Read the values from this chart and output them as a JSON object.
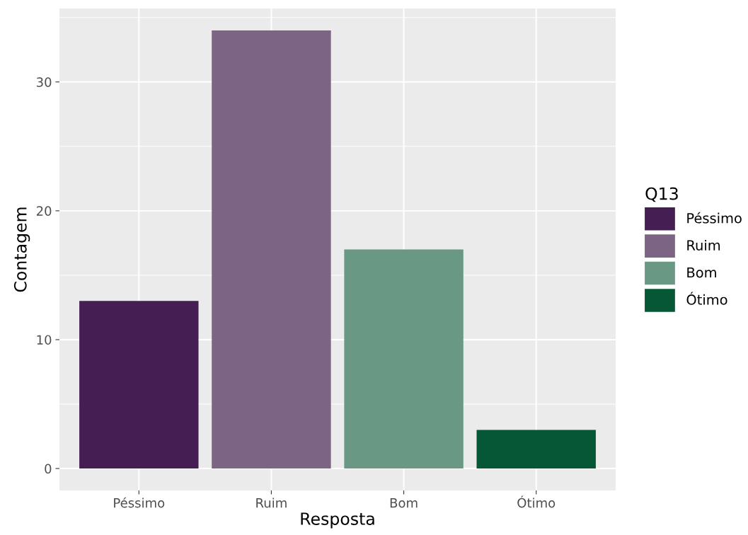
{
  "chart_data": {
    "type": "bar",
    "xlabel": "Resposta",
    "ylabel": "Contagem",
    "legend_title": "Q13",
    "categories": [
      "Péssimo",
      "Ruim",
      "Bom",
      "Ótimo"
    ],
    "series": [
      {
        "name": "Péssimo",
        "color": "#451f54",
        "values": [
          13,
          null,
          null,
          null
        ]
      },
      {
        "name": "Ruim",
        "color": "#7b6484",
        "values": [
          null,
          34,
          null,
          null
        ]
      },
      {
        "name": "Bom",
        "color": "#699985",
        "values": [
          null,
          null,
          17,
          null
        ]
      },
      {
        "name": "Ótimo",
        "color": "#065735",
        "values": [
          null,
          null,
          null,
          3
        ]
      }
    ],
    "ylim": [
      -1.7,
      35.7
    ],
    "yticks": [
      0,
      10,
      20,
      30
    ],
    "grid": true,
    "legend": "right"
  }
}
